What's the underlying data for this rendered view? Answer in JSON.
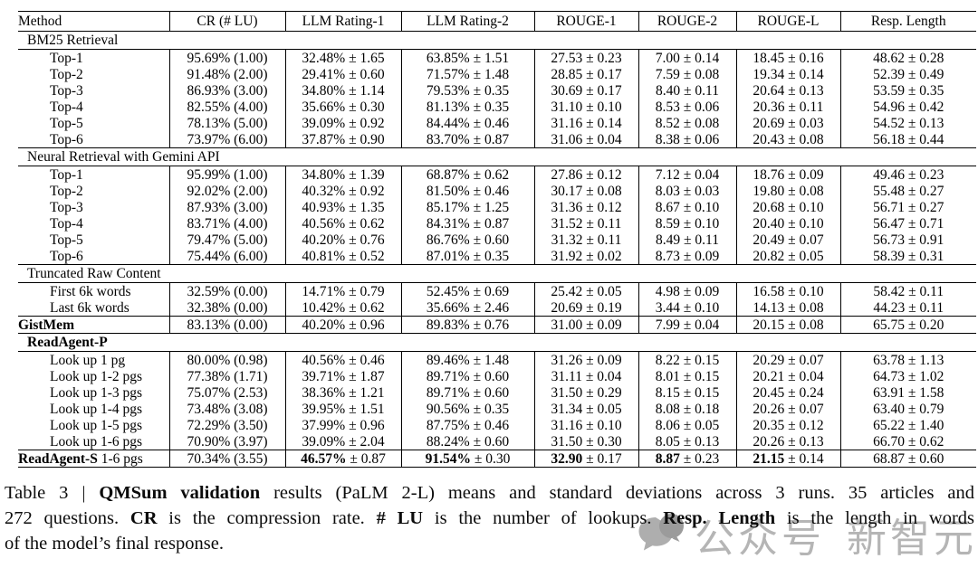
{
  "colors": {
    "background": "#ffffff",
    "text": "#000000",
    "table_rules": "#000000",
    "watermark_text": "#b5b5b5",
    "watermark_icon_dark": "#9b9b9b",
    "watermark_icon_light": "#aeaeae"
  },
  "table": {
    "columns": [
      "Method",
      "CR (# LU)",
      "LLM Rating-1",
      "LLM Rating-2",
      "ROUGE-1",
      "ROUGE-2",
      "ROUGE-L",
      "Resp. Length"
    ],
    "rows": [
      {
        "type": "group",
        "label": "BM25 Retrieval",
        "rule": true
      },
      {
        "type": "data",
        "indent": true,
        "cells": [
          "Top-1",
          "95.69% (1.00)",
          "32.48% ± 1.65",
          "63.85% ± 1.51",
          "27.53 ± 0.23",
          "7.00 ± 0.14",
          "18.45 ± 0.16",
          "48.62 ± 0.28"
        ]
      },
      {
        "type": "data",
        "indent": true,
        "cells": [
          "Top-2",
          "91.48% (2.00)",
          "29.41% ± 0.60",
          "71.57% ± 1.48",
          "28.85 ± 0.17",
          "7.59 ± 0.08",
          "19.34 ± 0.14",
          "52.39 ± 0.49"
        ]
      },
      {
        "type": "data",
        "indent": true,
        "cells": [
          "Top-3",
          "86.93% (3.00)",
          "34.80% ± 1.14",
          "79.53% ± 0.35",
          "30.69 ± 0.17",
          "8.40 ± 0.11",
          "20.64 ± 0.13",
          "53.59 ± 0.35"
        ]
      },
      {
        "type": "data",
        "indent": true,
        "cells": [
          "Top-4",
          "82.55% (4.00)",
          "35.66% ± 0.30",
          "81.13% ± 0.35",
          "31.10 ± 0.10",
          "8.53 ± 0.06",
          "20.36 ± 0.11",
          "54.96 ± 0.42"
        ]
      },
      {
        "type": "data",
        "indent": true,
        "cells": [
          "Top-5",
          "78.13% (5.00)",
          "39.09% ± 0.92",
          "84.44% ± 0.46",
          "31.16 ± 0.14",
          "8.52 ± 0.08",
          "20.69 ± 0.03",
          "54.52 ± 0.13"
        ]
      },
      {
        "type": "data",
        "indent": true,
        "rule": true,
        "cells": [
          "Top-6",
          "73.97% (6.00)",
          "37.87% ± 0.90",
          "83.70% ± 0.87",
          "31.06 ± 0.04",
          "8.38 ± 0.06",
          "20.43 ± 0.08",
          "56.18 ± 0.44"
        ]
      },
      {
        "type": "group",
        "label": "Neural Retrieval with Gemini API",
        "rule": true
      },
      {
        "type": "data",
        "indent": true,
        "cells": [
          "Top-1",
          "95.99% (1.00)",
          "34.80% ± 1.39",
          "68.87% ± 0.62",
          "27.86 ± 0.12",
          "7.12 ± 0.04",
          "18.76 ± 0.09",
          "49.46 ± 0.23"
        ]
      },
      {
        "type": "data",
        "indent": true,
        "cells": [
          "Top-2",
          "92.02% (2.00)",
          "40.32% ± 0.92",
          "81.50% ± 0.46",
          "30.17 ± 0.08",
          "8.03 ± 0.03",
          "19.80 ± 0.08",
          "55.48 ± 0.27"
        ]
      },
      {
        "type": "data",
        "indent": true,
        "cells": [
          "Top-3",
          "87.93% (3.00)",
          "40.93% ± 1.35",
          "85.17% ± 1.25",
          "31.36 ± 0.12",
          "8.67 ± 0.10",
          "20.68 ± 0.10",
          "56.71 ± 0.27"
        ]
      },
      {
        "type": "data",
        "indent": true,
        "cells": [
          "Top-4",
          "83.71% (4.00)",
          "40.56% ± 0.62",
          "84.31% ± 0.87",
          "31.52 ± 0.11",
          "8.59 ± 0.10",
          "20.40 ± 0.10",
          "56.47 ± 0.71"
        ]
      },
      {
        "type": "data",
        "indent": true,
        "cells": [
          "Top-5",
          "79.47% (5.00)",
          "40.20% ± 0.76",
          "86.76% ± 0.60",
          "31.32 ± 0.11",
          "8.49 ± 0.11",
          "20.49 ± 0.07",
          "56.73 ± 0.91"
        ]
      },
      {
        "type": "data",
        "indent": true,
        "rule": true,
        "cells": [
          "Top-6",
          "75.44% (6.00)",
          "40.81% ± 0.52",
          "87.01% ± 0.35",
          "31.92 ± 0.02",
          "8.73 ± 0.09",
          "20.82 ± 0.05",
          "58.39 ± 0.31"
        ]
      },
      {
        "type": "group",
        "label": "Truncated Raw Content",
        "rule": true
      },
      {
        "type": "data",
        "indent": true,
        "cells": [
          "First 6k words",
          "32.59% (0.00)",
          "14.71% ± 0.79",
          "52.45% ± 0.69",
          "25.42 ± 0.05",
          "4.98 ± 0.09",
          "16.58 ± 0.10",
          "58.42 ± 0.11"
        ]
      },
      {
        "type": "data",
        "indent": true,
        "rule": true,
        "cells": [
          "Last 6k words",
          "32.38% (0.00)",
          "10.42% ± 0.62",
          "35.66% ± 2.46",
          "20.69 ± 0.19",
          "3.44 ± 0.10",
          "14.13 ± 0.08",
          "44.23 ± 0.11"
        ]
      },
      {
        "type": "data",
        "indent": false,
        "rule": true,
        "cells": [
          "**GistMem**",
          "83.13% (0.00)",
          "40.20% ± 0.96",
          "89.83% ± 0.76",
          "31.00 ± 0.09",
          "7.99 ± 0.04",
          "20.15 ± 0.08",
          "65.75 ± 0.20"
        ]
      },
      {
        "type": "group",
        "label": "**ReadAgent-P**",
        "rule": true
      },
      {
        "type": "data",
        "indent": true,
        "cells": [
          "Look up 1 pg",
          "80.00% (0.98)",
          "40.56% ± 0.46",
          "89.46% ± 1.48",
          "31.26 ± 0.09",
          "8.22 ± 0.15",
          "20.29 ± 0.07",
          "63.78 ± 1.13"
        ]
      },
      {
        "type": "data",
        "indent": true,
        "cells": [
          "Look up 1-2 pgs",
          "77.38% (1.71)",
          "39.71% ± 1.87",
          "89.71% ± 0.60",
          "31.11 ± 0.04",
          "8.01 ± 0.15",
          "20.21 ± 0.04",
          "64.73 ± 1.02"
        ]
      },
      {
        "type": "data",
        "indent": true,
        "cells": [
          "Look up 1-3 pgs",
          "75.07% (2.53)",
          "38.36% ± 1.21",
          "89.71% ± 0.60",
          "31.50 ± 0.29",
          "8.15 ± 0.15",
          "20.45 ± 0.24",
          "63.91 ± 1.58"
        ]
      },
      {
        "type": "data",
        "indent": true,
        "cells": [
          "Look up 1-4 pgs",
          "73.48% (3.08)",
          "39.95% ± 1.51",
          "90.56% ± 0.35",
          "31.34 ± 0.05",
          "8.08 ± 0.18",
          "20.26 ± 0.07",
          "63.40 ± 0.79"
        ]
      },
      {
        "type": "data",
        "indent": true,
        "cells": [
          "Look up 1-5 pgs",
          "72.29% (3.50)",
          "37.99% ± 0.96",
          "87.75% ± 0.46",
          "31.16 ± 0.10",
          "8.06 ± 0.05",
          "20.35 ± 0.12",
          "65.22 ± 1.40"
        ]
      },
      {
        "type": "data",
        "indent": true,
        "rule": true,
        "cells": [
          "Look up 1-6 pgs",
          "70.90% (3.97)",
          "39.09% ± 2.04",
          "88.24% ± 0.60",
          "31.50 ± 0.30",
          "8.05 ± 0.13",
          "20.26 ± 0.13",
          "66.70 ± 0.62"
        ]
      },
      {
        "type": "data",
        "indent": false,
        "cells": [
          "**ReadAgent-S** 1-6 pgs",
          "70.34% (3.55)",
          "**46.57%** ± 0.87",
          "**91.54%** ± 0.30",
          "**32.90** ± 0.17",
          "**8.87** ± 0.23",
          "**21.15** ± 0.14",
          "68.87 ± 0.60"
        ]
      }
    ]
  },
  "caption": {
    "lines": [
      "Table 3 | **QMSum validation** results (PaLM 2-L) means and standard deviations across 3 runs. 35 articles and",
      "272 questions. **CR** is the compression rate. **# LU** is the number of lookups. **Resp. Length** is the length in words",
      "of the model’s final response."
    ]
  },
  "watermark": {
    "icon": "chat-bubbles-icon",
    "text1": "公众号",
    "text2": "新智元"
  }
}
